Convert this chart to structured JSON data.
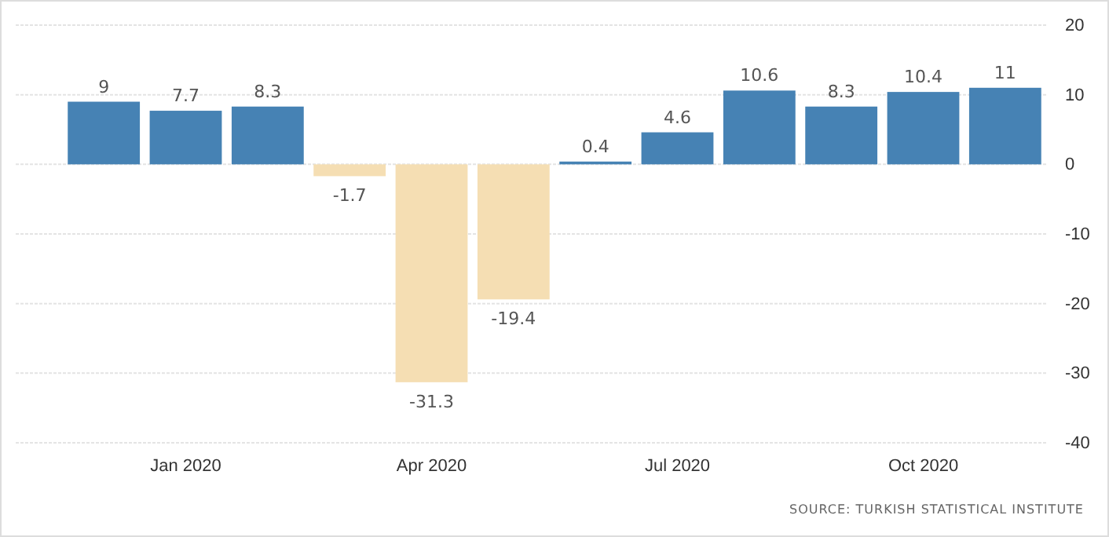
{
  "chart_data": {
    "type": "bar",
    "categories": [
      null,
      "Jan 2020",
      null,
      null,
      "Apr 2020",
      null,
      null,
      "Jul 2020",
      null,
      null,
      "Oct 2020",
      null
    ],
    "values": [
      9,
      7.7,
      8.3,
      -1.7,
      -31.3,
      -19.4,
      0.4,
      4.6,
      10.6,
      8.3,
      10.4,
      11
    ],
    "colors": [
      "#4682b4",
      "#4682b4",
      "#4682b4",
      "#f5deb3",
      "#f5deb3",
      "#f5deb3",
      "#4682b4",
      "#4682b4",
      "#4682b4",
      "#4682b4",
      "#4682b4",
      "#4682b4"
    ],
    "ylim": [
      -40,
      20
    ],
    "yticks": [
      -40,
      -30,
      -20,
      -10,
      0,
      10,
      20
    ],
    "grid": "y",
    "data_labels": true,
    "annotations": [
      "SOURCE: TURKISH STATISTICAL INSTITUTE"
    ]
  }
}
